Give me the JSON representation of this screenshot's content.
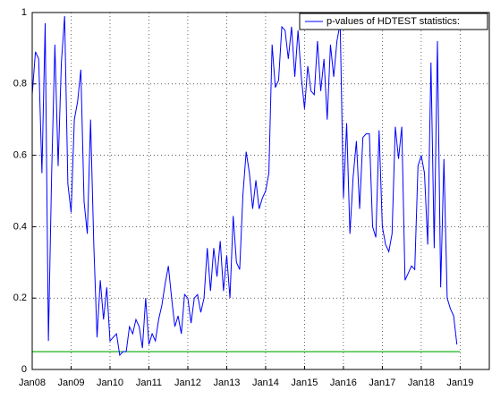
{
  "chart_data": {
    "type": "line",
    "x": [
      "2008-01",
      "2008-02",
      "2008-03",
      "2008-04",
      "2008-05",
      "2008-06",
      "2008-07",
      "2008-08",
      "2008-09",
      "2008-10",
      "2008-11",
      "2008-12",
      "2009-01",
      "2009-02",
      "2009-03",
      "2009-04",
      "2009-05",
      "2009-06",
      "2009-07",
      "2009-08",
      "2009-09",
      "2009-10",
      "2009-11",
      "2009-12",
      "2010-01",
      "2010-02",
      "2010-03",
      "2010-04",
      "2010-05",
      "2010-06",
      "2010-07",
      "2010-08",
      "2010-09",
      "2010-10",
      "2010-11",
      "2010-12",
      "2011-01",
      "2011-02",
      "2011-03",
      "2011-04",
      "2011-05",
      "2011-06",
      "2011-07",
      "2011-08",
      "2011-09",
      "2011-10",
      "2011-11",
      "2011-12",
      "2012-01",
      "2012-02",
      "2012-03",
      "2012-04",
      "2012-05",
      "2012-06",
      "2012-07",
      "2012-08",
      "2012-09",
      "2012-10",
      "2012-11",
      "2012-12",
      "2013-01",
      "2013-02",
      "2013-03",
      "2013-04",
      "2013-05",
      "2013-06",
      "2013-07",
      "2013-08",
      "2013-09",
      "2013-10",
      "2013-11",
      "2013-12",
      "2014-01",
      "2014-02",
      "2014-03",
      "2014-04",
      "2014-05",
      "2014-06",
      "2014-07",
      "2014-08",
      "2014-09",
      "2014-10",
      "2014-11",
      "2014-12",
      "2015-01",
      "2015-02",
      "2015-03",
      "2015-04",
      "2015-05",
      "2015-06",
      "2015-07",
      "2015-08",
      "2015-09",
      "2015-10",
      "2015-11",
      "2015-12",
      "2016-01",
      "2016-02",
      "2016-03",
      "2016-04",
      "2016-05",
      "2016-06",
      "2016-07",
      "2016-08",
      "2016-09",
      "2016-10",
      "2016-11",
      "2016-12",
      "2017-01",
      "2017-02",
      "2017-03",
      "2017-04",
      "2017-05",
      "2017-06",
      "2017-07",
      "2017-08",
      "2017-09",
      "2017-10",
      "2017-11",
      "2017-12",
      "2018-01",
      "2018-02",
      "2018-03",
      "2018-04",
      "2018-05",
      "2018-06",
      "2018-07",
      "2018-08",
      "2018-09",
      "2018-10",
      "2018-11",
      "2018-12"
    ],
    "series": [
      {
        "name": "p-values of HDTEST statistics:",
        "color": "#0000ff",
        "values": [
          0.77,
          0.89,
          0.87,
          0.55,
          0.97,
          0.08,
          0.55,
          0.91,
          0.57,
          0.86,
          0.99,
          0.52,
          0.44,
          0.7,
          0.75,
          0.84,
          0.47,
          0.38,
          0.7,
          0.35,
          0.09,
          0.25,
          0.14,
          0.23,
          0.08,
          0.09,
          0.1,
          0.04,
          0.05,
          0.05,
          0.12,
          0.1,
          0.14,
          0.12,
          0.06,
          0.2,
          0.07,
          0.1,
          0.08,
          0.14,
          0.18,
          0.24,
          0.29,
          0.2,
          0.12,
          0.15,
          0.1,
          0.21,
          0.2,
          0.13,
          0.2,
          0.21,
          0.16,
          0.2,
          0.34,
          0.22,
          0.34,
          0.26,
          0.36,
          0.22,
          0.32,
          0.2,
          0.43,
          0.3,
          0.28,
          0.49,
          0.61,
          0.55,
          0.45,
          0.53,
          0.45,
          0.48,
          0.5,
          0.55,
          0.91,
          0.79,
          0.81,
          0.96,
          0.95,
          0.87,
          0.96,
          0.82,
          0.95,
          0.82,
          0.73,
          0.85,
          0.78,
          0.77,
          0.92,
          0.78,
          0.87,
          0.7,
          0.91,
          0.82,
          0.92,
          0.97,
          0.48,
          0.69,
          0.38,
          0.54,
          0.64,
          0.45,
          0.65,
          0.66,
          0.66,
          0.4,
          0.37,
          0.67,
          0.4,
          0.35,
          0.33,
          0.38,
          0.68,
          0.59,
          0.68,
          0.25,
          0.27,
          0.29,
          0.28,
          0.57,
          0.6,
          0.55,
          0.35,
          0.86,
          0.34,
          0.92,
          0.23,
          0.59,
          0.2,
          0.17,
          0.15,
          0.07
        ]
      }
    ],
    "reference_line": {
      "y": 0.05,
      "color": "#00aa00"
    },
    "xlim": [
      "2008-01",
      "2019-10"
    ],
    "xticks": [
      {
        "value": "2008-01",
        "label": "Jan08"
      },
      {
        "value": "2009-01",
        "label": "Jan09"
      },
      {
        "value": "2010-01",
        "label": "Jan10"
      },
      {
        "value": "2011-01",
        "label": "Jan11"
      },
      {
        "value": "2012-01",
        "label": "Jan12"
      },
      {
        "value": "2013-01",
        "label": "Jan13"
      },
      {
        "value": "2014-01",
        "label": "Jan14"
      },
      {
        "value": "2015-01",
        "label": "Jan15"
      },
      {
        "value": "2016-01",
        "label": "Jan16"
      },
      {
        "value": "2017-01",
        "label": "Jan17"
      },
      {
        "value": "2018-01",
        "label": "Jan18"
      },
      {
        "value": "2019-01",
        "label": "Jan19"
      }
    ],
    "ylim": [
      0,
      1
    ],
    "yticks": [
      0,
      0.2,
      0.4,
      0.6,
      0.8,
      1
    ],
    "grid": true,
    "legend": "upper right"
  }
}
